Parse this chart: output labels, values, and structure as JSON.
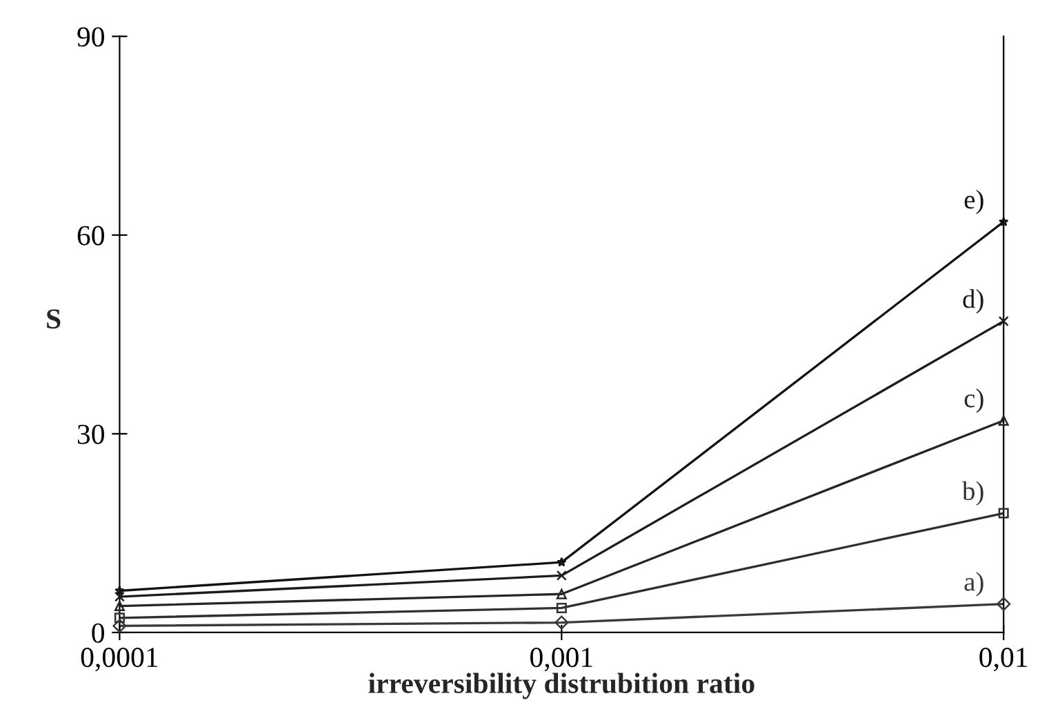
{
  "chart_data": {
    "type": "line",
    "xlabel": "irreversibility distrubition ratio",
    "ylabel": "S",
    "log": "x",
    "x": [
      0.0001,
      0.001,
      0.01
    ],
    "xlim": [
      0.0001,
      0.01
    ],
    "xticks": [
      {
        "value": 0.0001,
        "label": "0,0001"
      },
      {
        "value": 0.001,
        "label": "0,001"
      },
      {
        "value": 0.01,
        "label": "0,01"
      }
    ],
    "ylim": [
      0,
      90
    ],
    "yticks": [
      0,
      30,
      60,
      90
    ],
    "grid": false,
    "legend": false,
    "line_style": "solid",
    "series": [
      {
        "name": "a)",
        "color": "#3a3a3a",
        "marker": "diamond",
        "values": [
          1,
          1.5,
          4.3
        ]
      },
      {
        "name": "b)",
        "color": "#303030",
        "marker": "square",
        "values": [
          2.2,
          3.7,
          18
        ]
      },
      {
        "name": "c)",
        "color": "#262626",
        "marker": "triangle",
        "values": [
          4,
          5.8,
          32
        ]
      },
      {
        "name": "d)",
        "color": "#1c1c1c",
        "marker": "cross",
        "values": [
          5.4,
          8.6,
          47
        ]
      },
      {
        "name": "e)",
        "color": "#121212",
        "marker": "star",
        "values": [
          6.3,
          10.6,
          62
        ]
      }
    ]
  }
}
